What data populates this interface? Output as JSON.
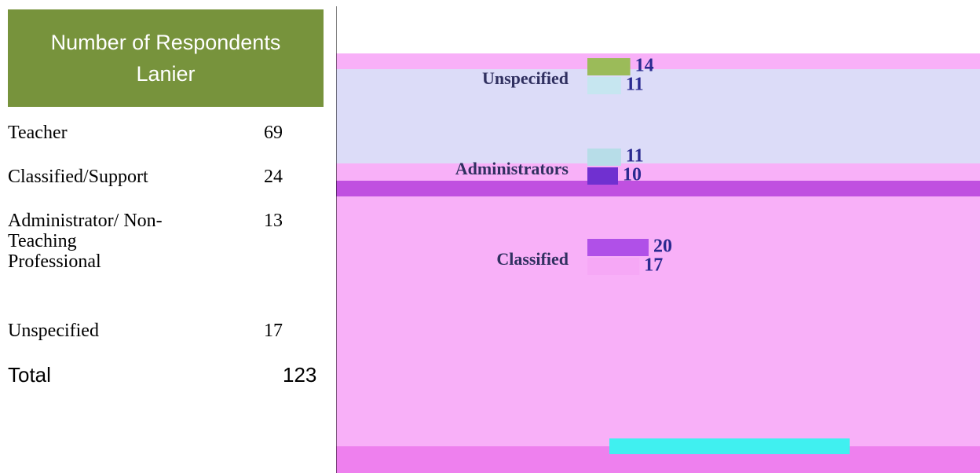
{
  "table": {
    "title": [
      "Number of Respondents",
      "Lanier"
    ],
    "rows": [
      [
        "Teacher",
        "69"
      ],
      [
        "Classified/Support",
        "24"
      ],
      [
        "Administrator/ Non-Teaching Professional",
        "13"
      ],
      [
        "Unspecified",
        "17"
      ],
      [
        "Total",
        "123"
      ]
    ]
  },
  "chart": {
    "categories": [
      "Unspecified",
      "Administrators",
      "Classified"
    ],
    "series": [
      {
        "values": [
          14,
          11,
          20
        ],
        "colors": [
          "#9bbb59",
          "#b7dde8",
          "#b050e8"
        ]
      },
      {
        "values": [
          11,
          10,
          17
        ],
        "colors": [
          "#c6e6f0",
          "#7030d0",
          "#f6a8f6"
        ]
      }
    ]
  }
}
